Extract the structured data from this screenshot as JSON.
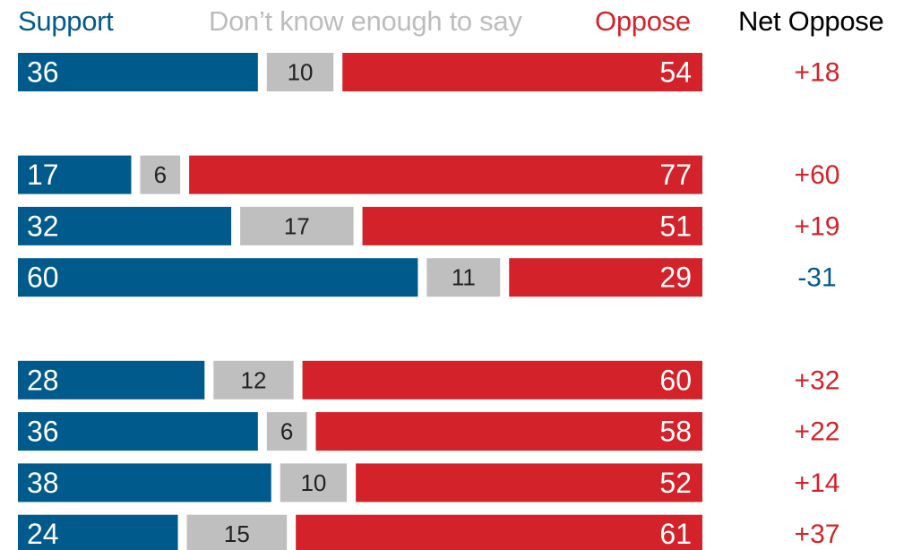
{
  "colors": {
    "support": "#005a8c",
    "dont_know": "#bfbfbf",
    "oppose": "#d3222a",
    "net_header": "#000000",
    "dont_know_header": "#bdbdbd"
  },
  "legend": {
    "support": "Support",
    "dont_know": "Don’t know enough to say",
    "oppose": "Oppose",
    "net": "Net Oppose"
  },
  "chart_data": {
    "type": "bar",
    "stacked": true,
    "orientation": "horizontal",
    "series": [
      {
        "name": "Support",
        "values": [
          36,
          17,
          32,
          60,
          28,
          36,
          38,
          24
        ]
      },
      {
        "name": "Don’t know enough to say",
        "values": [
          10,
          6,
          17,
          11,
          12,
          6,
          10,
          15
        ]
      },
      {
        "name": "Oppose",
        "values": [
          54,
          77,
          51,
          29,
          60,
          58,
          52,
          61
        ]
      }
    ],
    "net_oppose": [
      "+18",
      "+60",
      "+19",
      "-31",
      "+32",
      "+22",
      "+14",
      "+37"
    ],
    "groups": [
      [
        0
      ],
      [
        1,
        2,
        3
      ],
      [
        4,
        5,
        6,
        7
      ]
    ],
    "xlim": [
      0,
      100
    ],
    "legend_position": "top"
  }
}
